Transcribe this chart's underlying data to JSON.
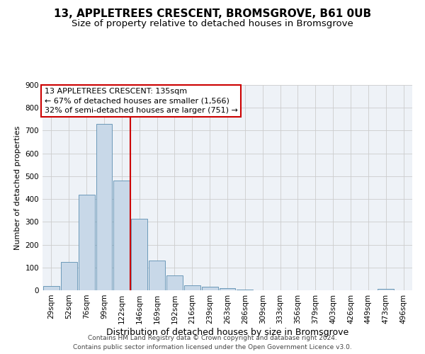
{
  "title1": "13, APPLETREES CRESCENT, BROMSGROVE, B61 0UB",
  "title2": "Size of property relative to detached houses in Bromsgrove",
  "xlabel": "Distribution of detached houses by size in Bromsgrove",
  "ylabel": "Number of detached properties",
  "categories": [
    "29sqm",
    "52sqm",
    "76sqm",
    "99sqm",
    "122sqm",
    "146sqm",
    "169sqm",
    "192sqm",
    "216sqm",
    "239sqm",
    "263sqm",
    "286sqm",
    "309sqm",
    "333sqm",
    "356sqm",
    "379sqm",
    "403sqm",
    "426sqm",
    "449sqm",
    "473sqm",
    "496sqm"
  ],
  "values": [
    18,
    125,
    418,
    730,
    480,
    315,
    130,
    65,
    22,
    17,
    10,
    2,
    0,
    0,
    0,
    0,
    0,
    0,
    0,
    5,
    0
  ],
  "bar_color": "#c8d8e8",
  "bar_edge_color": "#5b8db0",
  "vline_x": 4.5,
  "vline_color": "#cc0000",
  "annotation_text": "13 APPLETREES CRESCENT: 135sqm\n← 67% of detached houses are smaller (1,566)\n32% of semi-detached houses are larger (751) →",
  "annotation_box_color": "white",
  "annotation_box_edge": "#cc0000",
  "ylim": [
    0,
    900
  ],
  "yticks": [
    0,
    100,
    200,
    300,
    400,
    500,
    600,
    700,
    800,
    900
  ],
  "grid_color": "#cccccc",
  "bg_color": "#eef2f7",
  "footnote": "Contains HM Land Registry data © Crown copyright and database right 2024.\nContains public sector information licensed under the Open Government Licence v3.0.",
  "title1_fontsize": 11,
  "title2_fontsize": 9.5,
  "xlabel_fontsize": 9,
  "ylabel_fontsize": 8,
  "tick_fontsize": 7.5,
  "annotation_fontsize": 8,
  "footnote_fontsize": 6.5
}
